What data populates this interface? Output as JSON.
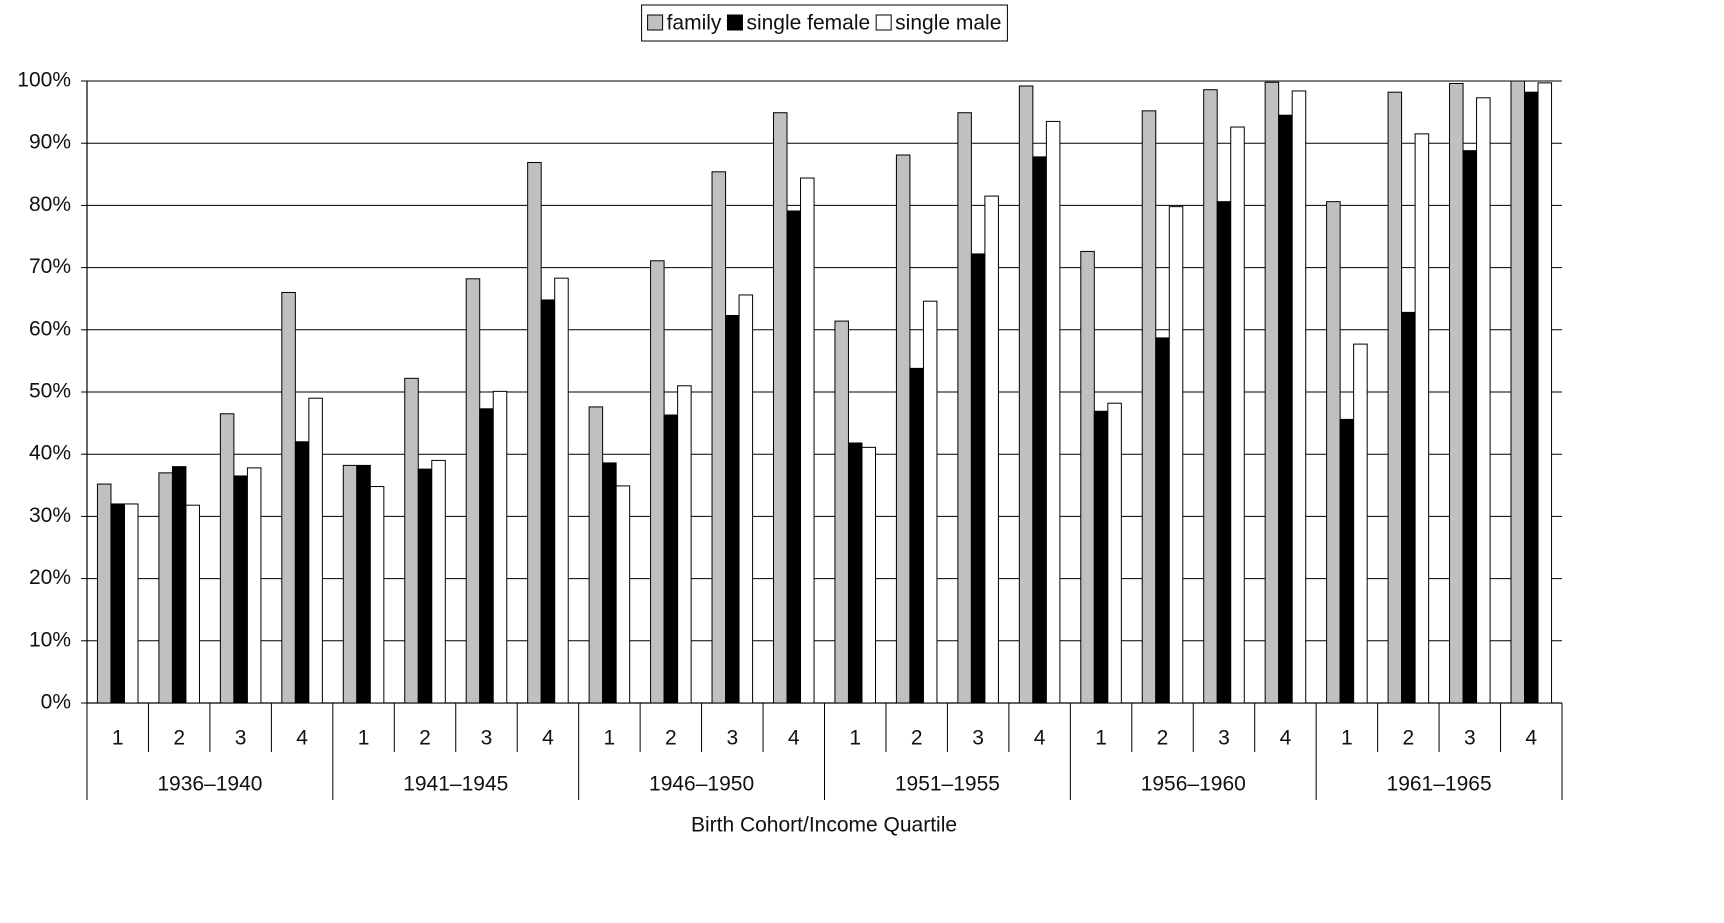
{
  "chart_data": {
    "type": "bar",
    "x_label": "Birth Cohort/Income Quartile",
    "categories": [
      "1",
      "2",
      "3",
      "4",
      "1",
      "2",
      "3",
      "4",
      "1",
      "2",
      "3",
      "4",
      "1",
      "2",
      "3",
      "4",
      "1",
      "2",
      "3",
      "4",
      "1",
      "2",
      "3",
      "4"
    ],
    "groups": [
      "1936–1940",
      "1941–1945",
      "1946–1950",
      "1951–1955",
      "1956–1960",
      "1961–1965"
    ],
    "series": [
      {
        "name": "family",
        "color": "#c0c0c0",
        "values": [
          35.2,
          37.0,
          46.5,
          66.0,
          38.2,
          52.2,
          68.2,
          86.9,
          47.6,
          71.1,
          85.4,
          94.9,
          61.4,
          88.1,
          94.9,
          99.2,
          72.6,
          95.2,
          98.6,
          99.8,
          80.6,
          98.2,
          99.6,
          100
        ]
      },
      {
        "name": "single female",
        "color": "#000000",
        "values": [
          32.0,
          38.0,
          36.5,
          42.0,
          38.2,
          37.6,
          47.3,
          64.8,
          38.6,
          46.3,
          62.3,
          79.1,
          41.8,
          53.8,
          72.2,
          87.8,
          46.9,
          58.7,
          80.6,
          94.5,
          45.6,
          62.8,
          88.8,
          98.2
        ]
      },
      {
        "name": "single male",
        "color": "#ffffff",
        "values": [
          32.0,
          31.8,
          37.8,
          49.0,
          34.8,
          39.0,
          50.1,
          68.3,
          34.9,
          51.0,
          65.6,
          84.4,
          41.1,
          64.6,
          81.5,
          93.5,
          48.2,
          79.8,
          92.6,
          98.4,
          57.7,
          91.5,
          97.3,
          99.7
        ]
      }
    ],
    "ylim": [
      0,
      100
    ],
    "yticks": [
      {
        "value": 0,
        "label": "0%"
      },
      {
        "value": 10,
        "label": "10%"
      },
      {
        "value": 20,
        "label": "20%"
      },
      {
        "value": 30,
        "label": "30%"
      },
      {
        "value": 40,
        "label": "40%"
      },
      {
        "value": 50,
        "label": "50%"
      },
      {
        "value": 60,
        "label": "60%"
      },
      {
        "value": 70,
        "label": "70%"
      },
      {
        "value": 80,
        "label": "80%"
      },
      {
        "value": 90,
        "label": "90%"
      },
      {
        "value": 100,
        "label": "100%"
      }
    ],
    "grid": true,
    "legend": "top"
  }
}
